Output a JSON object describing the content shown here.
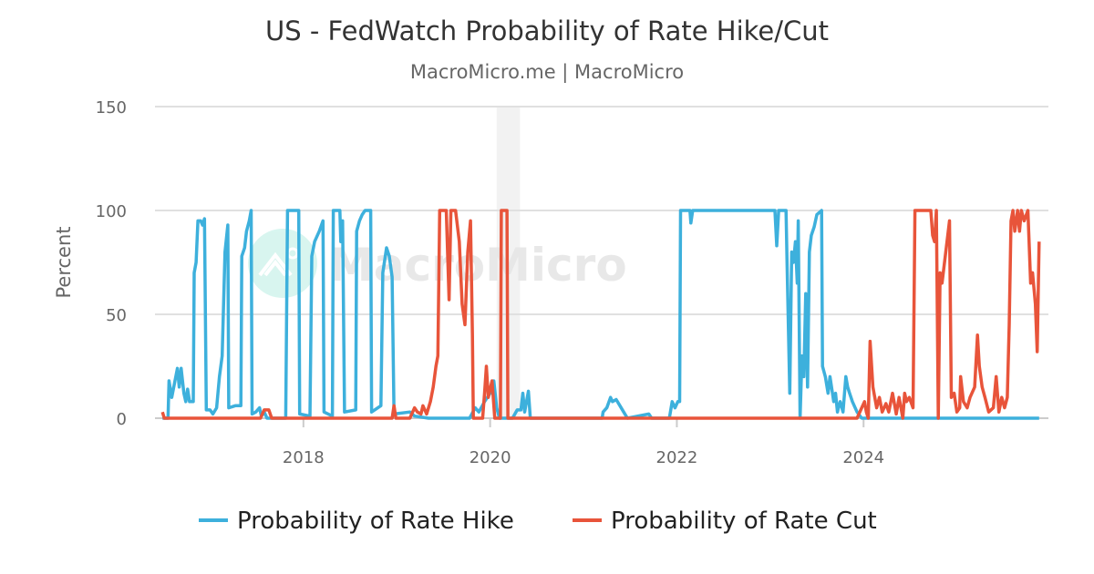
{
  "chart_data": {
    "type": "line",
    "title": "US - FedWatch Probability of Rate Hike/Cut",
    "subtitle": "MacroMicro.me | MacroMicro",
    "watermark": "MacroMicro",
    "xlabel": "",
    "ylabel": "Percent",
    "xlim": [
      2016.41,
      2025.98
    ],
    "ylim": [
      0,
      150
    ],
    "x_ticks": [
      2018,
      2020,
      2022,
      2024
    ],
    "y_ticks": [
      0,
      50,
      100,
      150
    ],
    "grid": true,
    "legend_position": "bottom",
    "shaded_regions": [
      [
        2020.07,
        2020.32
      ]
    ],
    "series": [
      {
        "name": "Probability of Rate Hike",
        "color": "#3db0dc",
        "points": [
          [
            2016.49,
            0
          ],
          [
            2016.55,
            0
          ],
          [
            2016.56,
            18
          ],
          [
            2016.59,
            10
          ],
          [
            2016.62,
            17
          ],
          [
            2016.65,
            24
          ],
          [
            2016.67,
            15
          ],
          [
            2016.69,
            24
          ],
          [
            2016.72,
            12
          ],
          [
            2016.74,
            8
          ],
          [
            2016.76,
            14
          ],
          [
            2016.78,
            8
          ],
          [
            2016.82,
            8
          ],
          [
            2016.83,
            70
          ],
          [
            2016.85,
            75
          ],
          [
            2016.87,
            95
          ],
          [
            2016.9,
            95
          ],
          [
            2016.92,
            93
          ],
          [
            2016.94,
            96
          ],
          [
            2016.96,
            4
          ],
          [
            2017.0,
            4
          ],
          [
            2017.03,
            2
          ],
          [
            2017.07,
            5
          ],
          [
            2017.1,
            20
          ],
          [
            2017.13,
            30
          ],
          [
            2017.16,
            80
          ],
          [
            2017.19,
            93
          ],
          [
            2017.2,
            5
          ],
          [
            2017.27,
            6
          ],
          [
            2017.33,
            6
          ],
          [
            2017.34,
            78
          ],
          [
            2017.37,
            82
          ],
          [
            2017.39,
            90
          ],
          [
            2017.42,
            95
          ],
          [
            2017.44,
            100
          ],
          [
            2017.45,
            2
          ],
          [
            2017.49,
            3
          ],
          [
            2017.53,
            5
          ],
          [
            2017.55,
            1
          ],
          [
            2017.58,
            3
          ],
          [
            2017.61,
            0
          ],
          [
            2017.81,
            0
          ],
          [
            2017.83,
            100
          ],
          [
            2017.95,
            100
          ],
          [
            2017.96,
            2
          ],
          [
            2018.07,
            1
          ],
          [
            2018.09,
            78
          ],
          [
            2018.12,
            85
          ],
          [
            2018.17,
            90
          ],
          [
            2018.21,
            95
          ],
          [
            2018.22,
            3
          ],
          [
            2018.31,
            1
          ],
          [
            2018.32,
            100
          ],
          [
            2018.39,
            100
          ],
          [
            2018.4,
            85
          ],
          [
            2018.42,
            95
          ],
          [
            2018.44,
            3
          ],
          [
            2018.56,
            4
          ],
          [
            2018.57,
            90
          ],
          [
            2018.6,
            95
          ],
          [
            2018.63,
            98
          ],
          [
            2018.66,
            100
          ],
          [
            2018.72,
            100
          ],
          [
            2018.73,
            3
          ],
          [
            2018.83,
            6
          ],
          [
            2018.85,
            70
          ],
          [
            2018.89,
            82
          ],
          [
            2018.92,
            78
          ],
          [
            2018.95,
            68
          ],
          [
            2018.97,
            2
          ],
          [
            2019.14,
            3
          ],
          [
            2019.19,
            1
          ],
          [
            2019.34,
            0
          ],
          [
            2019.78,
            0
          ],
          [
            2019.84,
            5
          ],
          [
            2019.88,
            3
          ],
          [
            2019.94,
            8
          ],
          [
            2020.0,
            12
          ],
          [
            2020.04,
            18
          ],
          [
            2020.07,
            5
          ],
          [
            2020.1,
            0
          ],
          [
            2020.24,
            0
          ],
          [
            2020.29,
            4
          ],
          [
            2020.33,
            4
          ],
          [
            2020.35,
            12
          ],
          [
            2020.37,
            3
          ],
          [
            2020.41,
            13
          ],
          [
            2020.43,
            0
          ],
          [
            2021.2,
            0
          ],
          [
            2021.21,
            3
          ],
          [
            2021.25,
            5
          ],
          [
            2021.29,
            10
          ],
          [
            2021.31,
            8
          ],
          [
            2021.35,
            9
          ],
          [
            2021.39,
            6
          ],
          [
            2021.43,
            3
          ],
          [
            2021.47,
            0
          ],
          [
            2021.7,
            2
          ],
          [
            2021.73,
            0
          ],
          [
            2021.92,
            0
          ],
          [
            2021.95,
            8
          ],
          [
            2021.98,
            5
          ],
          [
            2022.01,
            8
          ],
          [
            2022.03,
            8
          ],
          [
            2022.04,
            100
          ],
          [
            2022.14,
            100
          ],
          [
            2022.15,
            94
          ],
          [
            2022.17,
            100
          ],
          [
            2023.05,
            100
          ],
          [
            2023.07,
            83
          ],
          [
            2023.09,
            100
          ],
          [
            2023.17,
            100
          ],
          [
            2023.18,
            75
          ],
          [
            2023.21,
            12
          ],
          [
            2023.23,
            80
          ],
          [
            2023.25,
            75
          ],
          [
            2023.27,
            85
          ],
          [
            2023.29,
            65
          ],
          [
            2023.3,
            95
          ],
          [
            2023.32,
            0
          ],
          [
            2023.34,
            30
          ],
          [
            2023.36,
            20
          ],
          [
            2023.38,
            60
          ],
          [
            2023.4,
            15
          ],
          [
            2023.42,
            80
          ],
          [
            2023.44,
            88
          ],
          [
            2023.47,
            92
          ],
          [
            2023.5,
            98
          ],
          [
            2023.55,
            100
          ],
          [
            2023.56,
            25
          ],
          [
            2023.59,
            20
          ],
          [
            2023.62,
            12
          ],
          [
            2023.64,
            20
          ],
          [
            2023.68,
            8
          ],
          [
            2023.7,
            12
          ],
          [
            2023.72,
            3
          ],
          [
            2023.73,
            5
          ],
          [
            2023.75,
            8
          ],
          [
            2023.78,
            3
          ],
          [
            2023.81,
            20
          ],
          [
            2023.83,
            15
          ],
          [
            2023.85,
            12
          ],
          [
            2023.88,
            8
          ],
          [
            2023.91,
            5
          ],
          [
            2023.93,
            3
          ],
          [
            2023.98,
            0
          ],
          [
            2025.88,
            0
          ]
        ]
      },
      {
        "name": "Probability of Rate Cut",
        "color": "#e8543a",
        "points": [
          [
            2016.49,
            3
          ],
          [
            2016.51,
            0
          ],
          [
            2017.54,
            0
          ],
          [
            2017.58,
            4
          ],
          [
            2017.63,
            4
          ],
          [
            2017.66,
            0
          ],
          [
            2018.95,
            0
          ],
          [
            2018.97,
            6
          ],
          [
            2018.99,
            0
          ],
          [
            2019.14,
            0
          ],
          [
            2019.19,
            5
          ],
          [
            2019.22,
            3
          ],
          [
            2019.26,
            2
          ],
          [
            2019.28,
            6
          ],
          [
            2019.32,
            2
          ],
          [
            2019.36,
            8
          ],
          [
            2019.39,
            15
          ],
          [
            2019.42,
            25
          ],
          [
            2019.44,
            30
          ],
          [
            2019.46,
            100
          ],
          [
            2019.53,
            100
          ],
          [
            2019.56,
            57
          ],
          [
            2019.58,
            100
          ],
          [
            2019.63,
            100
          ],
          [
            2019.67,
            85
          ],
          [
            2019.7,
            55
          ],
          [
            2019.73,
            45
          ],
          [
            2019.76,
            80
          ],
          [
            2019.79,
            95
          ],
          [
            2019.81,
            40
          ],
          [
            2019.82,
            0
          ],
          [
            2019.92,
            0
          ],
          [
            2019.94,
            12
          ],
          [
            2019.96,
            25
          ],
          [
            2019.98,
            10
          ],
          [
            2020.02,
            18
          ],
          [
            2020.05,
            0
          ],
          [
            2020.11,
            0
          ],
          [
            2020.12,
            100
          ],
          [
            2020.18,
            100
          ],
          [
            2020.19,
            0
          ],
          [
            2023.93,
            0
          ],
          [
            2023.98,
            5
          ],
          [
            2024.01,
            8
          ],
          [
            2024.03,
            3
          ],
          [
            2024.05,
            0
          ],
          [
            2024.07,
            37
          ],
          [
            2024.1,
            15
          ],
          [
            2024.14,
            5
          ],
          [
            2024.17,
            10
          ],
          [
            2024.2,
            3
          ],
          [
            2024.24,
            7
          ],
          [
            2024.27,
            3
          ],
          [
            2024.31,
            12
          ],
          [
            2024.35,
            2
          ],
          [
            2024.38,
            10
          ],
          [
            2024.42,
            0
          ],
          [
            2024.44,
            12
          ],
          [
            2024.46,
            8
          ],
          [
            2024.49,
            10
          ],
          [
            2024.53,
            5
          ],
          [
            2024.55,
            100
          ],
          [
            2024.72,
            100
          ],
          [
            2024.74,
            88
          ],
          [
            2024.76,
            85
          ],
          [
            2024.78,
            100
          ],
          [
            2024.8,
            0
          ],
          [
            2024.82,
            70
          ],
          [
            2024.84,
            65
          ],
          [
            2024.88,
            80
          ],
          [
            2024.92,
            95
          ],
          [
            2024.94,
            10
          ],
          [
            2024.97,
            12
          ],
          [
            2025.0,
            3
          ],
          [
            2025.03,
            5
          ],
          [
            2025.04,
            20
          ],
          [
            2025.07,
            8
          ],
          [
            2025.11,
            5
          ],
          [
            2025.14,
            10
          ],
          [
            2025.19,
            15
          ],
          [
            2025.22,
            40
          ],
          [
            2025.24,
            25
          ],
          [
            2025.27,
            15
          ],
          [
            2025.3,
            10
          ],
          [
            2025.34,
            3
          ],
          [
            2025.39,
            5
          ],
          [
            2025.42,
            20
          ],
          [
            2025.45,
            3
          ],
          [
            2025.48,
            10
          ],
          [
            2025.51,
            5
          ],
          [
            2025.54,
            10
          ],
          [
            2025.56,
            45
          ],
          [
            2025.58,
            95
          ],
          [
            2025.6,
            100
          ],
          [
            2025.62,
            90
          ],
          [
            2025.65,
            100
          ],
          [
            2025.67,
            90
          ],
          [
            2025.69,
            100
          ],
          [
            2025.72,
            95
          ],
          [
            2025.76,
            100
          ],
          [
            2025.79,
            65
          ],
          [
            2025.81,
            70
          ],
          [
            2025.84,
            55
          ],
          [
            2025.86,
            32
          ],
          [
            2025.88,
            85
          ]
        ]
      }
    ]
  }
}
